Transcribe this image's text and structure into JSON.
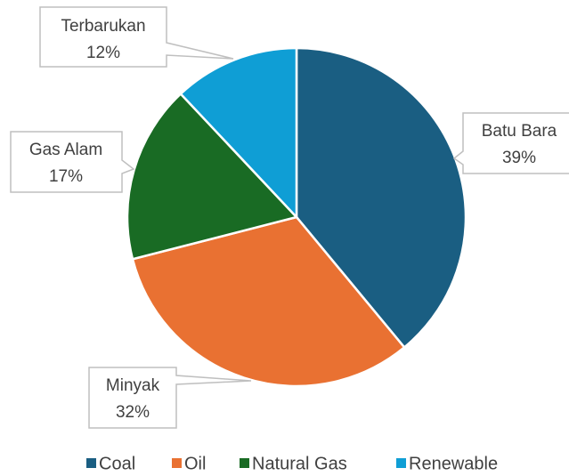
{
  "chart_data": {
    "type": "pie",
    "categories": [
      "Coal",
      "Oil",
      "Natural Gas",
      "Renewable"
    ],
    "values": [
      39,
      32,
      17,
      12
    ],
    "value_labels": [
      "39%",
      "32%",
      "17%",
      "12%"
    ],
    "data_labels": [
      "Batu Bara",
      "Minyak",
      "Gas Alam",
      "Terbarukan"
    ],
    "colors": [
      "#1a5e82",
      "#e97132",
      "#196b24",
      "#0f9ed5"
    ],
    "legend": "bottom"
  }
}
